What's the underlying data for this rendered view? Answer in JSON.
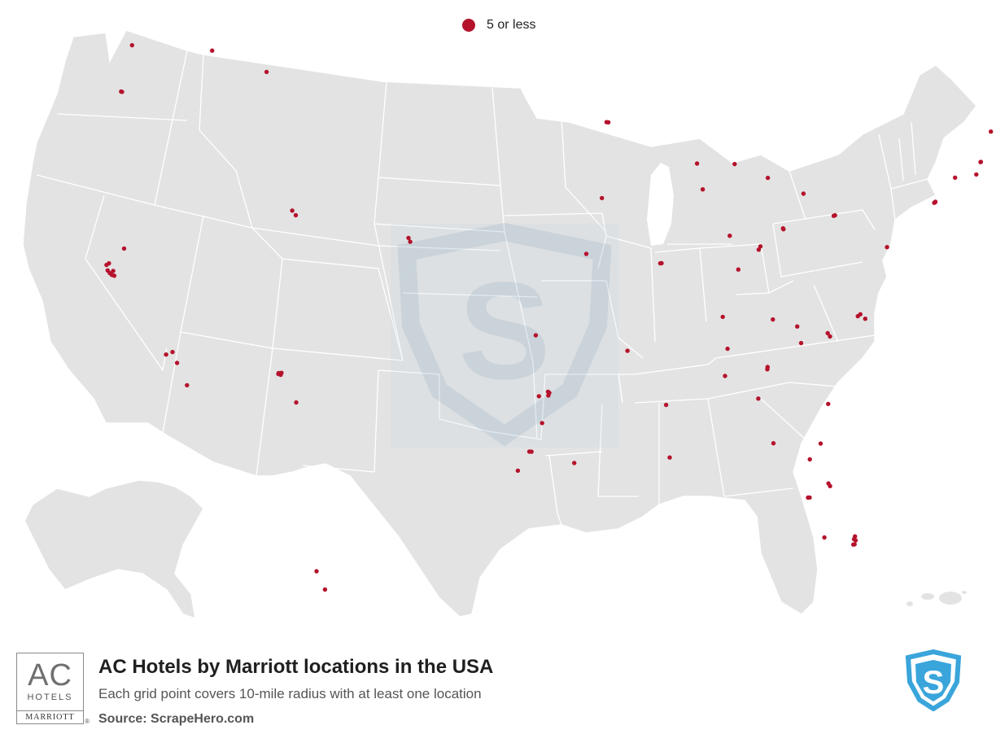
{
  "legend": {
    "label": "5 or less",
    "marker_color": "#b5122c"
  },
  "map": {
    "region": "United States",
    "land_color": "#e3e3e3",
    "border_color": "#ffffff",
    "marker_color": "#b5122c",
    "watermark": "ScrapeHero shield",
    "location_points": [
      {
        "lat": 47.61,
        "lon": -122.33
      },
      {
        "lat": 45.52,
        "lon": -122.68
      },
      {
        "lat": 45.51,
        "lon": -122.62
      },
      {
        "lat": 47.66,
        "lon": -117.42
      },
      {
        "lat": 46.87,
        "lon": -114.0
      },
      {
        "lat": 38.58,
        "lon": -121.49
      },
      {
        "lat": 37.87,
        "lon": -122.27
      },
      {
        "lat": 37.79,
        "lon": -122.4
      },
      {
        "lat": 37.55,
        "lon": -122.3
      },
      {
        "lat": 37.44,
        "lon": -122.16
      },
      {
        "lat": 37.34,
        "lon": -121.89
      },
      {
        "lat": 37.55,
        "lon": -121.98
      },
      {
        "lat": 37.37,
        "lon": -122.03
      },
      {
        "lat": 34.15,
        "lon": -118.14
      },
      {
        "lat": 34.02,
        "lon": -118.49
      },
      {
        "lat": 33.68,
        "lon": -117.83
      },
      {
        "lat": 32.72,
        "lon": -117.16
      },
      {
        "lat": 33.45,
        "lon": -112.07
      },
      {
        "lat": 33.42,
        "lon": -111.94
      },
      {
        "lat": 33.49,
        "lon": -112.06
      },
      {
        "lat": 33.51,
        "lon": -111.9
      },
      {
        "lat": 32.22,
        "lon": -110.97
      },
      {
        "lat": 40.76,
        "lon": -111.89
      },
      {
        "lat": 40.56,
        "lon": -111.66
      },
      {
        "lat": 39.74,
        "lon": -104.99
      },
      {
        "lat": 39.57,
        "lon": -104.88
      },
      {
        "lat": 44.98,
        "lon": -93.27
      },
      {
        "lat": 44.97,
        "lon": -93.16
      },
      {
        "lat": 41.59,
        "lon": -93.62
      },
      {
        "lat": 39.1,
        "lon": -94.58
      },
      {
        "lat": 38.63,
        "lon": -90.2
      },
      {
        "lat": 38.63,
        "lon": -90.28
      },
      {
        "lat": 43.04,
        "lon": -87.91
      },
      {
        "lat": 41.88,
        "lon": -87.63
      },
      {
        "lat": 42.96,
        "lon": -85.67
      },
      {
        "lat": 42.28,
        "lon": -83.74
      },
      {
        "lat": 41.5,
        "lon": -81.69
      },
      {
        "lat": 40.44,
        "lon": -80.0
      },
      {
        "lat": 40.46,
        "lon": -79.92
      },
      {
        "lat": 39.96,
        "lon": -83.0
      },
      {
        "lat": 40.0,
        "lon": -83.02
      },
      {
        "lat": 39.77,
        "lon": -86.16
      },
      {
        "lat": 39.1,
        "lon": -84.51
      },
      {
        "lat": 39.24,
        "lon": -84.4
      },
      {
        "lat": 38.25,
        "lon": -85.76
      },
      {
        "lat": 36.16,
        "lon": -86.78
      },
      {
        "lat": 35.96,
        "lon": -83.92
      },
      {
        "lat": 35.47,
        "lon": -97.52
      },
      {
        "lat": 34.75,
        "lon": -92.29
      },
      {
        "lat": 32.78,
        "lon": -96.8
      },
      {
        "lat": 32.95,
        "lon": -96.82
      },
      {
        "lat": 32.75,
        "lon": -97.33
      },
      {
        "lat": 32.9,
        "lon": -96.75
      },
      {
        "lat": 31.55,
        "lon": -97.15
      },
      {
        "lat": 30.27,
        "lon": -97.74
      },
      {
        "lat": 30.27,
        "lon": -97.86
      },
      {
        "lat": 29.42,
        "lon": -98.49
      },
      {
        "lat": 29.76,
        "lon": -95.37
      },
      {
        "lat": 32.3,
        "lon": -90.18
      },
      {
        "lat": 29.95,
        "lon": -90.07
      },
      {
        "lat": 33.52,
        "lon": -86.8
      },
      {
        "lat": 34.73,
        "lon": -86.59
      },
      {
        "lat": 33.75,
        "lon": -84.39
      },
      {
        "lat": 33.85,
        "lon": -84.37
      },
      {
        "lat": 32.08,
        "lon": -81.09
      },
      {
        "lat": 32.46,
        "lon": -84.99
      },
      {
        "lat": 30.44,
        "lon": -84.28
      },
      {
        "lat": 30.33,
        "lon": -81.66
      },
      {
        "lat": 29.65,
        "lon": -82.32
      },
      {
        "lat": 28.54,
        "lon": -81.38
      },
      {
        "lat": 28.42,
        "lon": -81.3
      },
      {
        "lat": 27.95,
        "lon": -82.46
      },
      {
        "lat": 27.95,
        "lon": -82.55
      },
      {
        "lat": 26.14,
        "lon": -81.8
      },
      {
        "lat": 26.12,
        "lon": -80.14
      },
      {
        "lat": 25.94,
        "lon": -80.12
      },
      {
        "lat": 25.77,
        "lon": -80.19
      },
      {
        "lat": 25.76,
        "lon": -80.26
      },
      {
        "lat": 26.0,
        "lon": -80.2
      },
      {
        "lat": 35.23,
        "lon": -80.84
      },
      {
        "lat": 35.08,
        "lon": -80.72
      },
      {
        "lat": 35.6,
        "lon": -82.55
      },
      {
        "lat": 34.85,
        "lon": -82.39
      },
      {
        "lat": 35.78,
        "lon": -78.64
      },
      {
        "lat": 35.99,
        "lon": -78.9
      },
      {
        "lat": 35.91,
        "lon": -79.05
      },
      {
        "lat": 38.9,
        "lon": -77.04
      },
      {
        "lat": 40.74,
        "lon": -73.99
      },
      {
        "lat": 40.76,
        "lon": -73.98
      },
      {
        "lat": 40.72,
        "lon": -74.05
      },
      {
        "lat": 41.76,
        "lon": -72.68
      },
      {
        "lat": 42.36,
        "lon": -71.06
      },
      {
        "lat": 42.35,
        "lon": -71.08
      },
      {
        "lat": 41.82,
        "lon": -71.41
      },
      {
        "lat": 43.66,
        "lon": -70.26
      },
      {
        "lat": 21.3,
        "lon": -157.86
      },
      {
        "lat": 20.89,
        "lon": -156.47
      }
    ]
  },
  "footer": {
    "logo": {
      "mark": "AC",
      "sub": "HOTELS",
      "parent": "MARRIOTT",
      "reg": "®"
    },
    "title": "AC Hotels by Marriott locations in the USA",
    "subtitle": "Each grid point covers 10-mile radius with at least one location",
    "source": "Source: ScrapeHero.com",
    "source_logo_color": "#3aa5db"
  }
}
